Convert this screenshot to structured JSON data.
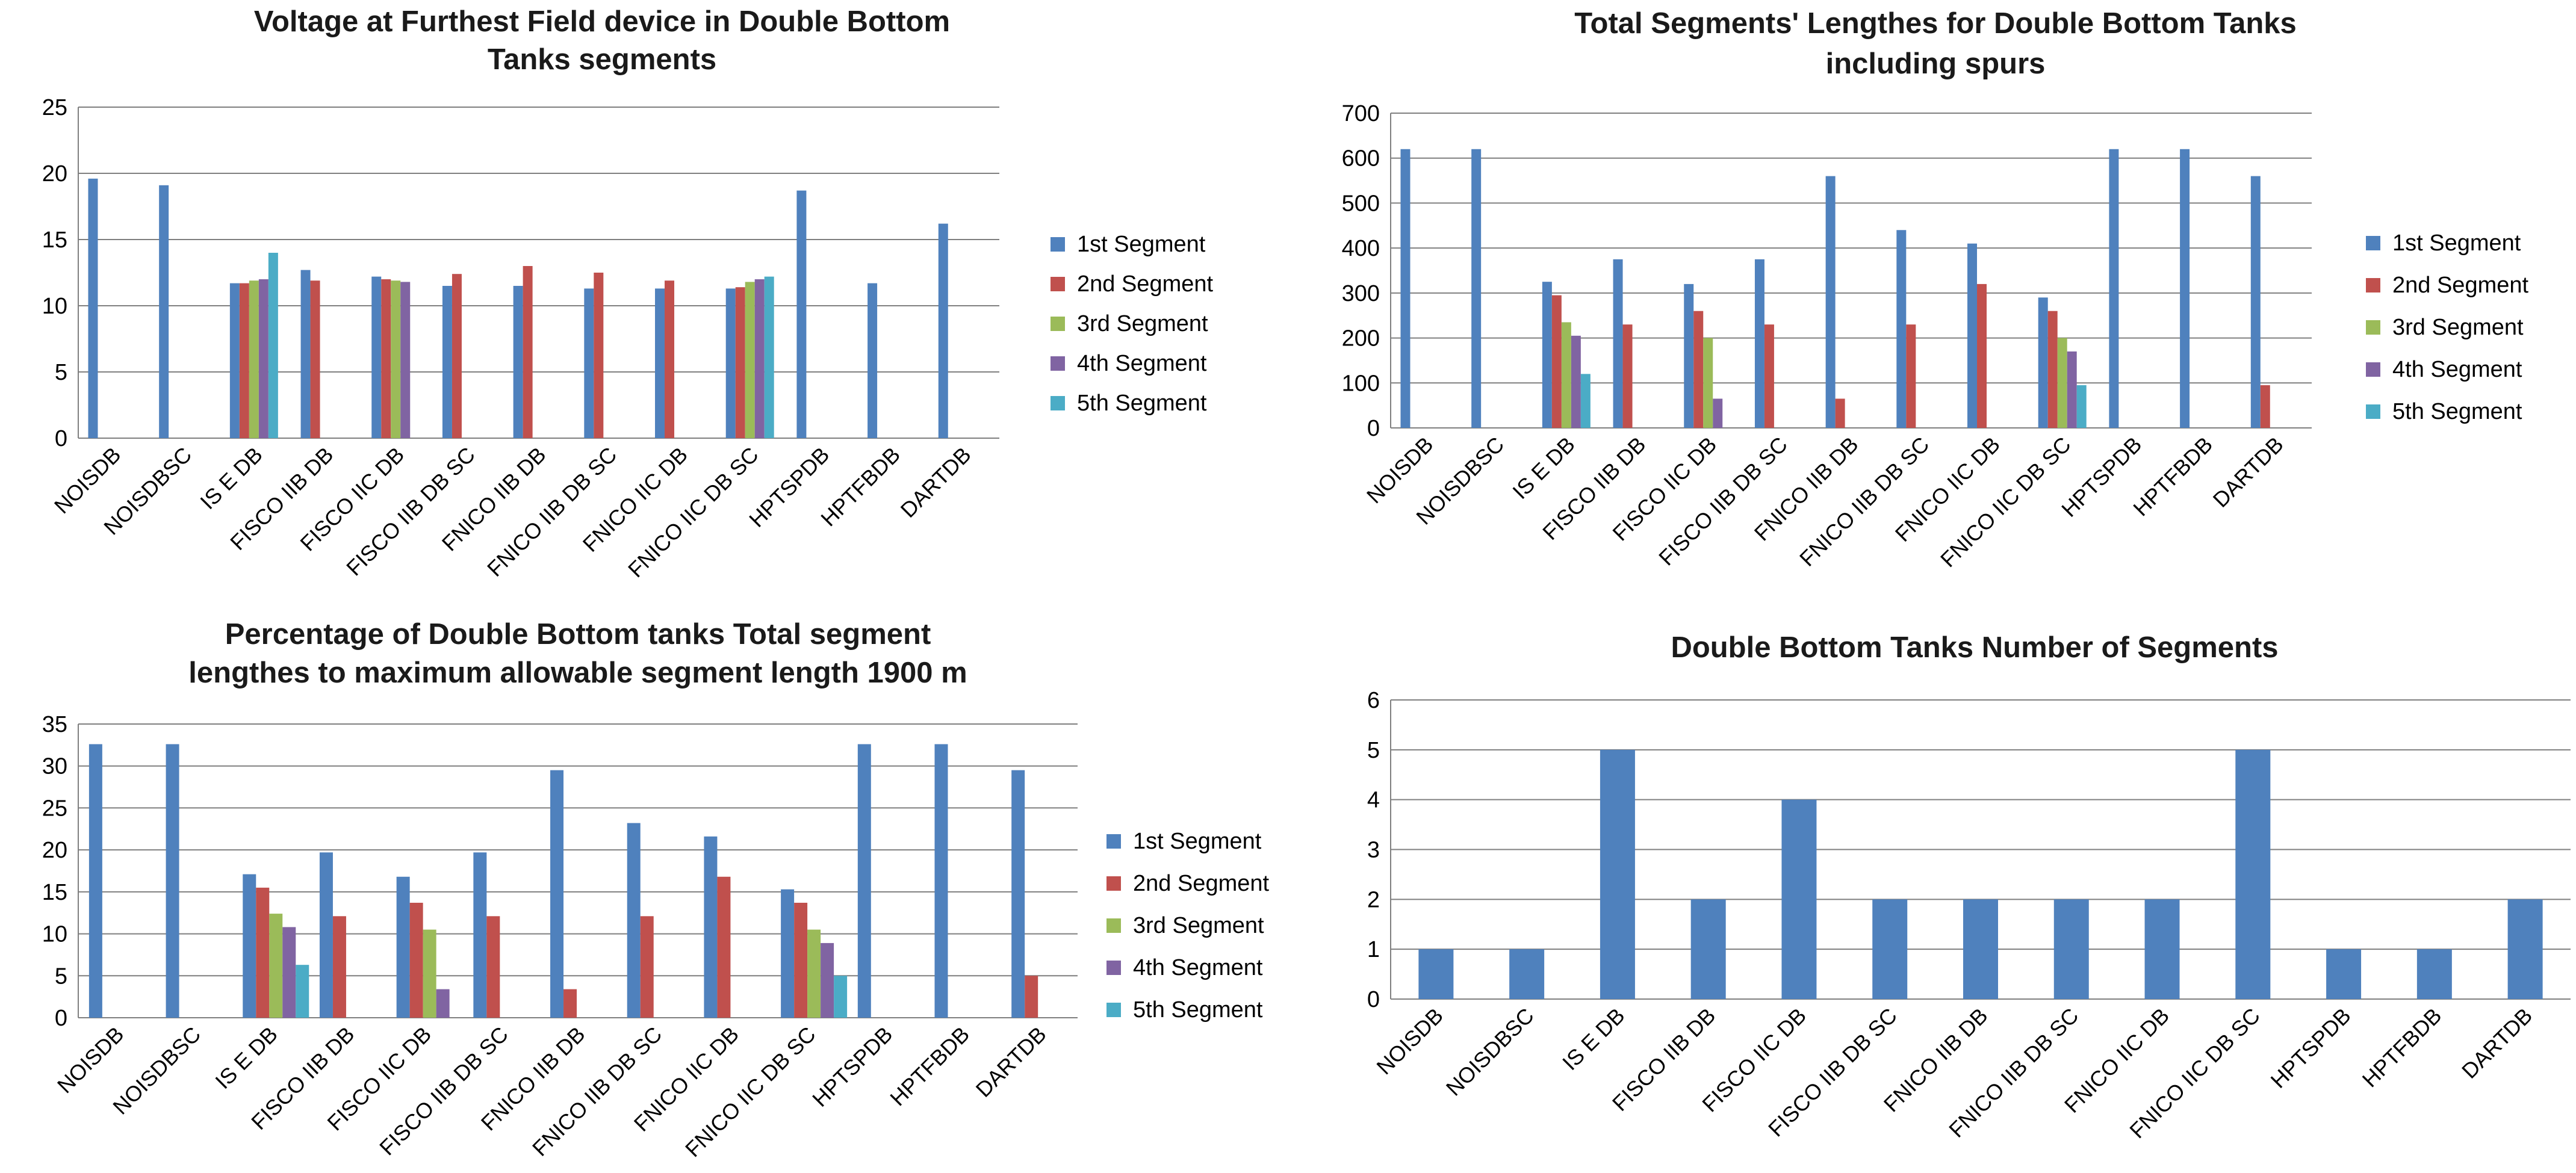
{
  "colors": {
    "series": [
      "#4F81BD",
      "#C0504D",
      "#9BBB59",
      "#8064A2",
      "#4BACC6"
    ],
    "grid": "#7f7f7f",
    "axis": "#7f7f7f"
  },
  "chart_data": [
    {
      "type": "bar",
      "title": [
        "Voltage at Furthest Field device in Double Bottom",
        "Tanks segments"
      ],
      "categories": [
        "NOISDB",
        "NOISDBSC",
        "IS E DB",
        "FISCO IIB DB",
        "FISCO IIC DB",
        "FISCO IIB DB SC",
        "FNICO IIB DB",
        "FNICO IIB DB SC",
        "FNICO IIC DB",
        "FNICO IIC DB SC",
        "HPTSPDB",
        "HPTFBDB",
        "DARTDB"
      ],
      "series": [
        {
          "name": "1st Segment",
          "values": [
            19.6,
            19.1,
            11.7,
            12.7,
            12.2,
            11.5,
            11.5,
            11.3,
            11.3,
            11.3,
            18.7,
            11.7,
            16.2
          ]
        },
        {
          "name": "2nd Segment",
          "values": [
            null,
            null,
            11.7,
            11.9,
            12.0,
            12.4,
            13.0,
            12.5,
            11.9,
            11.4,
            null,
            null,
            null
          ]
        },
        {
          "name": "3rd Segment",
          "values": [
            null,
            null,
            11.9,
            null,
            11.9,
            null,
            null,
            null,
            null,
            11.8,
            null,
            null,
            null
          ]
        },
        {
          "name": "4th Segment",
          "values": [
            null,
            null,
            12.0,
            null,
            11.8,
            null,
            null,
            null,
            null,
            12.0,
            null,
            null,
            null
          ]
        },
        {
          "name": "5th Segment",
          "values": [
            null,
            null,
            14.0,
            null,
            null,
            null,
            null,
            null,
            null,
            12.2,
            null,
            null,
            null
          ]
        }
      ],
      "ylim": [
        0,
        25
      ],
      "yticks": [
        0,
        5,
        10,
        15,
        20,
        25
      ],
      "xlabel": "",
      "ylabel": "",
      "grid": true,
      "legend": "right"
    },
    {
      "type": "bar",
      "title": [
        "Total Segments' Lengthes for Double Bottom Tanks",
        "including spurs"
      ],
      "categories": [
        "NOISDB",
        "NOISDBSC",
        "IS E DB",
        "FISCO IIB DB",
        "FISCO IIC DB",
        "FISCO IIB DB SC",
        "FNICO IIB DB",
        "FNICO IIB DB SC",
        "FNICO IIC DB",
        "FNICO IIC DB SC",
        "HPTSPDB",
        "HPTFBDB",
        "DARTDB"
      ],
      "series": [
        {
          "name": "1st Segment",
          "values": [
            620,
            620,
            325,
            375,
            320,
            375,
            560,
            440,
            410,
            290,
            620,
            620,
            560
          ]
        },
        {
          "name": "2nd Segment",
          "values": [
            null,
            null,
            295,
            230,
            260,
            230,
            65,
            230,
            320,
            260,
            null,
            null,
            95
          ]
        },
        {
          "name": "3rd Segment",
          "values": [
            null,
            null,
            235,
            null,
            200,
            null,
            null,
            null,
            null,
            200,
            null,
            null,
            null
          ]
        },
        {
          "name": "4th Segment",
          "values": [
            null,
            null,
            205,
            null,
            65,
            null,
            null,
            null,
            null,
            170,
            null,
            null,
            null
          ]
        },
        {
          "name": "5th Segment",
          "values": [
            null,
            null,
            120,
            null,
            null,
            null,
            null,
            null,
            null,
            95,
            null,
            null,
            null
          ]
        }
      ],
      "ylim": [
        0,
        700
      ],
      "yticks": [
        0,
        100,
        200,
        300,
        400,
        500,
        600,
        700
      ],
      "xlabel": "",
      "ylabel": "",
      "grid": true,
      "legend": "right"
    },
    {
      "type": "bar",
      "title": [
        "Percentage of Double Bottom tanks Total segment",
        "lengthes to maximum allowable segment length 1900 m"
      ],
      "categories": [
        "NOISDB",
        "NOISDBSC",
        "IS E DB",
        "FISCO IIB DB",
        "FISCO IIC DB",
        "FISCO IIB DB SC",
        "FNICO IIB DB",
        "FNICO IIB DB SC",
        "FNICO IIC DB",
        "FNICO IIC DB SC",
        "HPTSPDB",
        "HPTFBDB",
        "DARTDB"
      ],
      "series": [
        {
          "name": "1st Segment",
          "values": [
            32.6,
            32.6,
            17.1,
            19.7,
            16.8,
            19.7,
            29.5,
            23.2,
            21.6,
            15.3,
            32.6,
            32.6,
            29.5
          ]
        },
        {
          "name": "2nd Segment",
          "values": [
            null,
            null,
            15.5,
            12.1,
            13.7,
            12.1,
            3.4,
            12.1,
            16.8,
            13.7,
            null,
            null,
            5.0
          ]
        },
        {
          "name": "3rd Segment",
          "values": [
            null,
            null,
            12.4,
            null,
            10.5,
            null,
            null,
            null,
            null,
            10.5,
            null,
            null,
            null
          ]
        },
        {
          "name": "4th Segment",
          "values": [
            null,
            null,
            10.8,
            null,
            3.4,
            null,
            null,
            null,
            null,
            8.9,
            null,
            null,
            null
          ]
        },
        {
          "name": "5th Segment",
          "values": [
            null,
            null,
            6.3,
            null,
            null,
            null,
            null,
            null,
            null,
            5.0,
            null,
            null,
            null
          ]
        }
      ],
      "ylim": [
        0,
        35
      ],
      "yticks": [
        0,
        5,
        10,
        15,
        20,
        25,
        30,
        35
      ],
      "xlabel": "",
      "ylabel": "",
      "grid": true,
      "legend": "right"
    },
    {
      "type": "bar",
      "title": [
        "Double Bottom Tanks Number of Segments"
      ],
      "categories": [
        "NOISDB",
        "NOISDBSC",
        "IS E DB",
        "FISCO IIB DB",
        "FISCO IIC DB",
        "FISCO IIB DB SC",
        "FNICO IIB DB",
        "FNICO IIB DB SC",
        "FNICO IIC DB",
        "FNICO IIC DB SC",
        "HPTSPDB",
        "HPTFBDB",
        "DARTDB"
      ],
      "series": [
        {
          "name": "Number of Segments",
          "values": [
            1,
            1,
            5,
            2,
            4,
            2,
            2,
            2,
            2,
            5,
            1,
            1,
            2
          ]
        }
      ],
      "ylim": [
        0,
        6
      ],
      "yticks": [
        0,
        1,
        2,
        3,
        4,
        5,
        6
      ],
      "xlabel": "",
      "ylabel": "",
      "grid": true,
      "legend": "none"
    }
  ]
}
